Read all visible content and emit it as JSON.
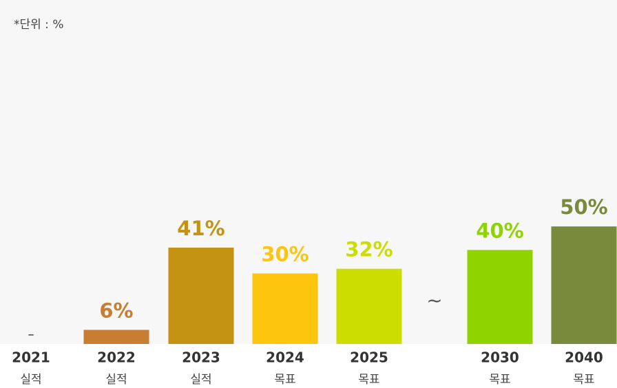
{
  "unit_note": "*단위 : %",
  "gap_mark": "~",
  "chart_data": {
    "type": "bar",
    "title": "",
    "xlabel": "",
    "ylabel": "",
    "ylim": [
      0,
      50
    ],
    "grid": false,
    "legend": "none",
    "categories": [
      "2021",
      "2022",
      "2023",
      "2024",
      "2025",
      "2030",
      "2040"
    ],
    "sublabels": [
      "실적",
      "실적",
      "실적",
      "목표",
      "목표",
      "목표",
      "목표"
    ],
    "values": [
      null,
      6,
      41,
      30,
      32,
      40,
      50
    ],
    "value_labels": [
      "–",
      "6%",
      "41%",
      "30%",
      "32%",
      "40%",
      "50%"
    ],
    "colors": [
      "#222222",
      "#c97d32",
      "#c59313",
      "#fec50f",
      "#ccdd00",
      "#8fd400",
      "#7a8a3d"
    ]
  }
}
